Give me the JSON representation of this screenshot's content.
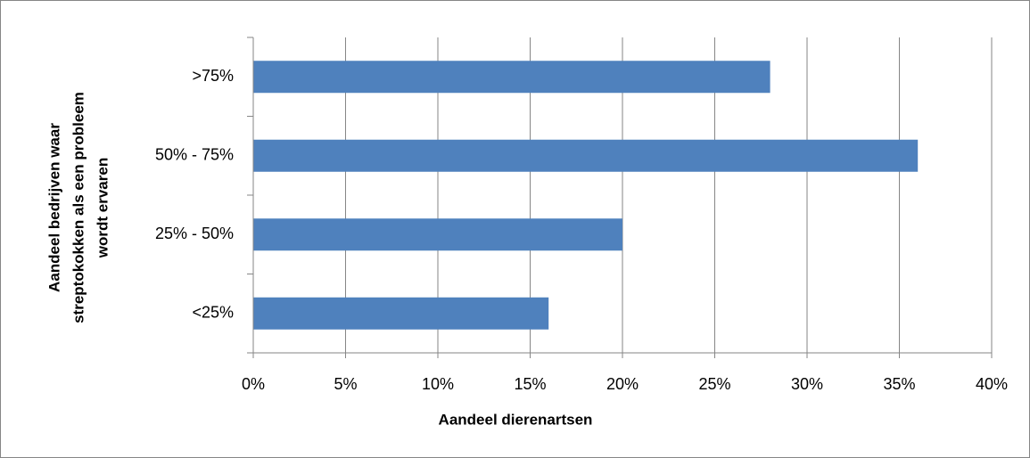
{
  "chart_data": {
    "type": "bar",
    "orientation": "horizontal",
    "x_label": "Aandeel dierenartsen",
    "y_label_lines": [
      "Aandeel bedrijven waar",
      "streptokokken als een probleem",
      "wordt ervaren"
    ],
    "categories": [
      ">75%",
      "50% - 75%",
      "25% - 50%",
      "<25%"
    ],
    "values": [
      28,
      36,
      20,
      16
    ],
    "color": "#4f81bd",
    "xlim": [
      0,
      40
    ],
    "xticks": [
      {
        "value": 0,
        "label": "0%"
      },
      {
        "value": 5,
        "label": "5%"
      },
      {
        "value": 10,
        "label": "10%"
      },
      {
        "value": 15,
        "label": "15%"
      },
      {
        "value": 20,
        "label": "20%"
      },
      {
        "value": 25,
        "label": "25%"
      },
      {
        "value": 30,
        "label": "30%"
      },
      {
        "value": 35,
        "label": "35%"
      },
      {
        "value": 40,
        "label": "40%"
      }
    ],
    "grid": true
  }
}
